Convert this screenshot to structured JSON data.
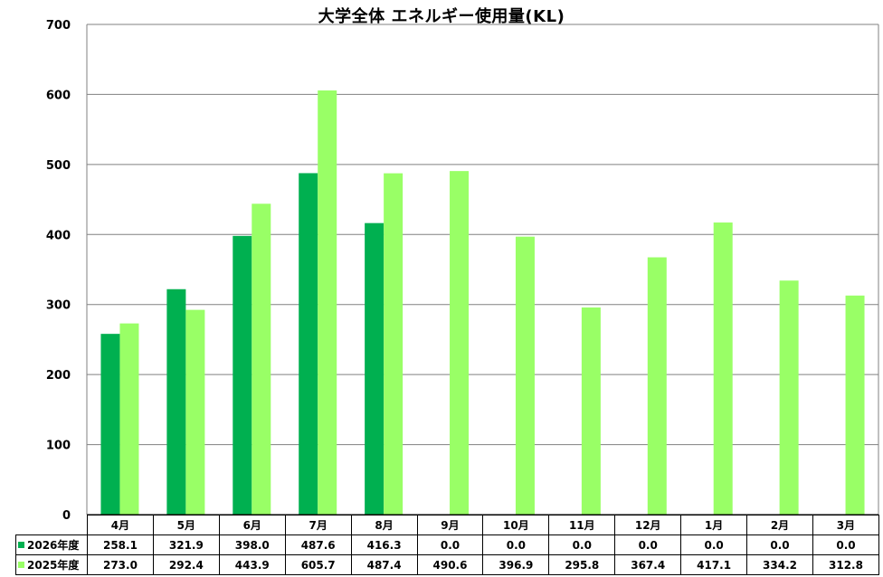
{
  "chart_data": {
    "type": "bar",
    "title": "大学全体 エネルギー使用量(KL)",
    "categories": [
      "4月",
      "5月",
      "6月",
      "7月",
      "8月",
      "9月",
      "10月",
      "11月",
      "12月",
      "1月",
      "2月",
      "3月"
    ],
    "series": [
      {
        "name": "2026年度",
        "color": "#00b050",
        "values": [
          258.1,
          321.9,
          398.0,
          487.6,
          416.3,
          0.0,
          0.0,
          0.0,
          0.0,
          0.0,
          0.0,
          0.0
        ],
        "labels": [
          "258.1",
          "321.9",
          "398.0",
          "487.6",
          "416.3",
          "0.0",
          "0.0",
          "0.0",
          "0.0",
          "0.0",
          "0.0",
          "0.0"
        ]
      },
      {
        "name": "2025年度",
        "color": "#99ff66",
        "values": [
          273.0,
          292.4,
          443.9,
          605.7,
          487.4,
          490.6,
          396.9,
          295.8,
          367.4,
          417.1,
          334.2,
          312.8
        ],
        "labels": [
          "273.0",
          "292.4",
          "443.9",
          "605.7",
          "487.4",
          "490.6",
          "396.9",
          "295.8",
          "367.4",
          "417.1",
          "334.2",
          "312.8"
        ]
      }
    ],
    "ylim": [
      0,
      700
    ],
    "yticks": [
      "0",
      "100",
      "200",
      "300",
      "400",
      "500",
      "600",
      "700"
    ],
    "grid": true,
    "legend": "data-table"
  }
}
